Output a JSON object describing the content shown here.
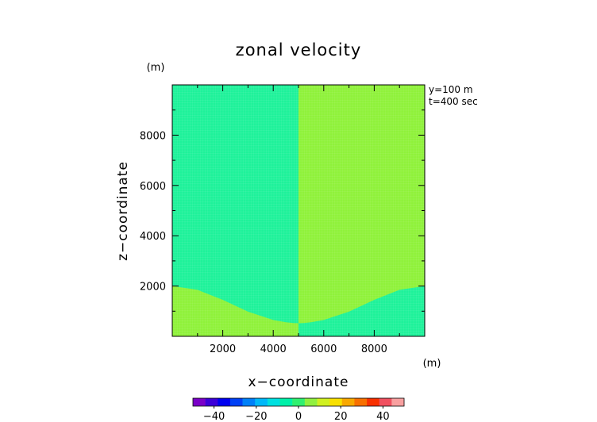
{
  "chart_data": {
    "type": "heatmap",
    "title": "zonal velocity",
    "xlabel": "x−coordinate",
    "ylabel": "z−coordinate",
    "x_unit": "(m)",
    "z_unit": "(m)",
    "annotations": [
      "y=100 m",
      "t=400 sec"
    ],
    "xlim": [
      0,
      10000
    ],
    "zlim": [
      0,
      10000
    ],
    "x_ticks": [
      2000,
      4000,
      6000,
      8000
    ],
    "z_ticks": [
      2000,
      4000,
      6000,
      8000
    ],
    "x_tick_labels": [
      "2000",
      "4000",
      "6000",
      "8000"
    ],
    "z_tick_labels": [
      "2000",
      "4000",
      "6000",
      "8000"
    ],
    "grid": false,
    "colors": {
      "left_region": "#1ef29a",
      "right_region": "#8ff23a",
      "right_low_region": "#1ef29a"
    },
    "regions": [
      {
        "name": "upper-left",
        "value": -4
      },
      {
        "name": "upper-right",
        "value": 4
      },
      {
        "name": "lower-left",
        "value": 4
      },
      {
        "name": "lower-right",
        "value": -4
      }
    ],
    "boundary_x": 5000,
    "terrain_profile": {
      "x": [
        0,
        1000,
        2000,
        3000,
        4000,
        4500,
        4800,
        5000,
        5200,
        5500,
        6000,
        7000,
        8000,
        9000,
        10000
      ],
      "z": [
        2000,
        1850,
        1450,
        980,
        650,
        560,
        530,
        520,
        530,
        560,
        650,
        980,
        1450,
        1850,
        2000
      ]
    },
    "colorbar": {
      "range": [
        -50,
        50
      ],
      "tick_labels": [
        "−40",
        "−20",
        "0",
        "20",
        "40"
      ],
      "tick_values": [
        -40,
        -20,
        0,
        20,
        40
      ],
      "colors": [
        "#7a00c8",
        "#3c00d8",
        "#0000f0",
        "#0040f5",
        "#0080f8",
        "#00b8f8",
        "#00e0e0",
        "#00f0a8",
        "#30f070",
        "#90f040",
        "#d0f020",
        "#f8e000",
        "#f8a800",
        "#f87000",
        "#f83000",
        "#f05060",
        "#f8a0a0"
      ]
    }
  }
}
